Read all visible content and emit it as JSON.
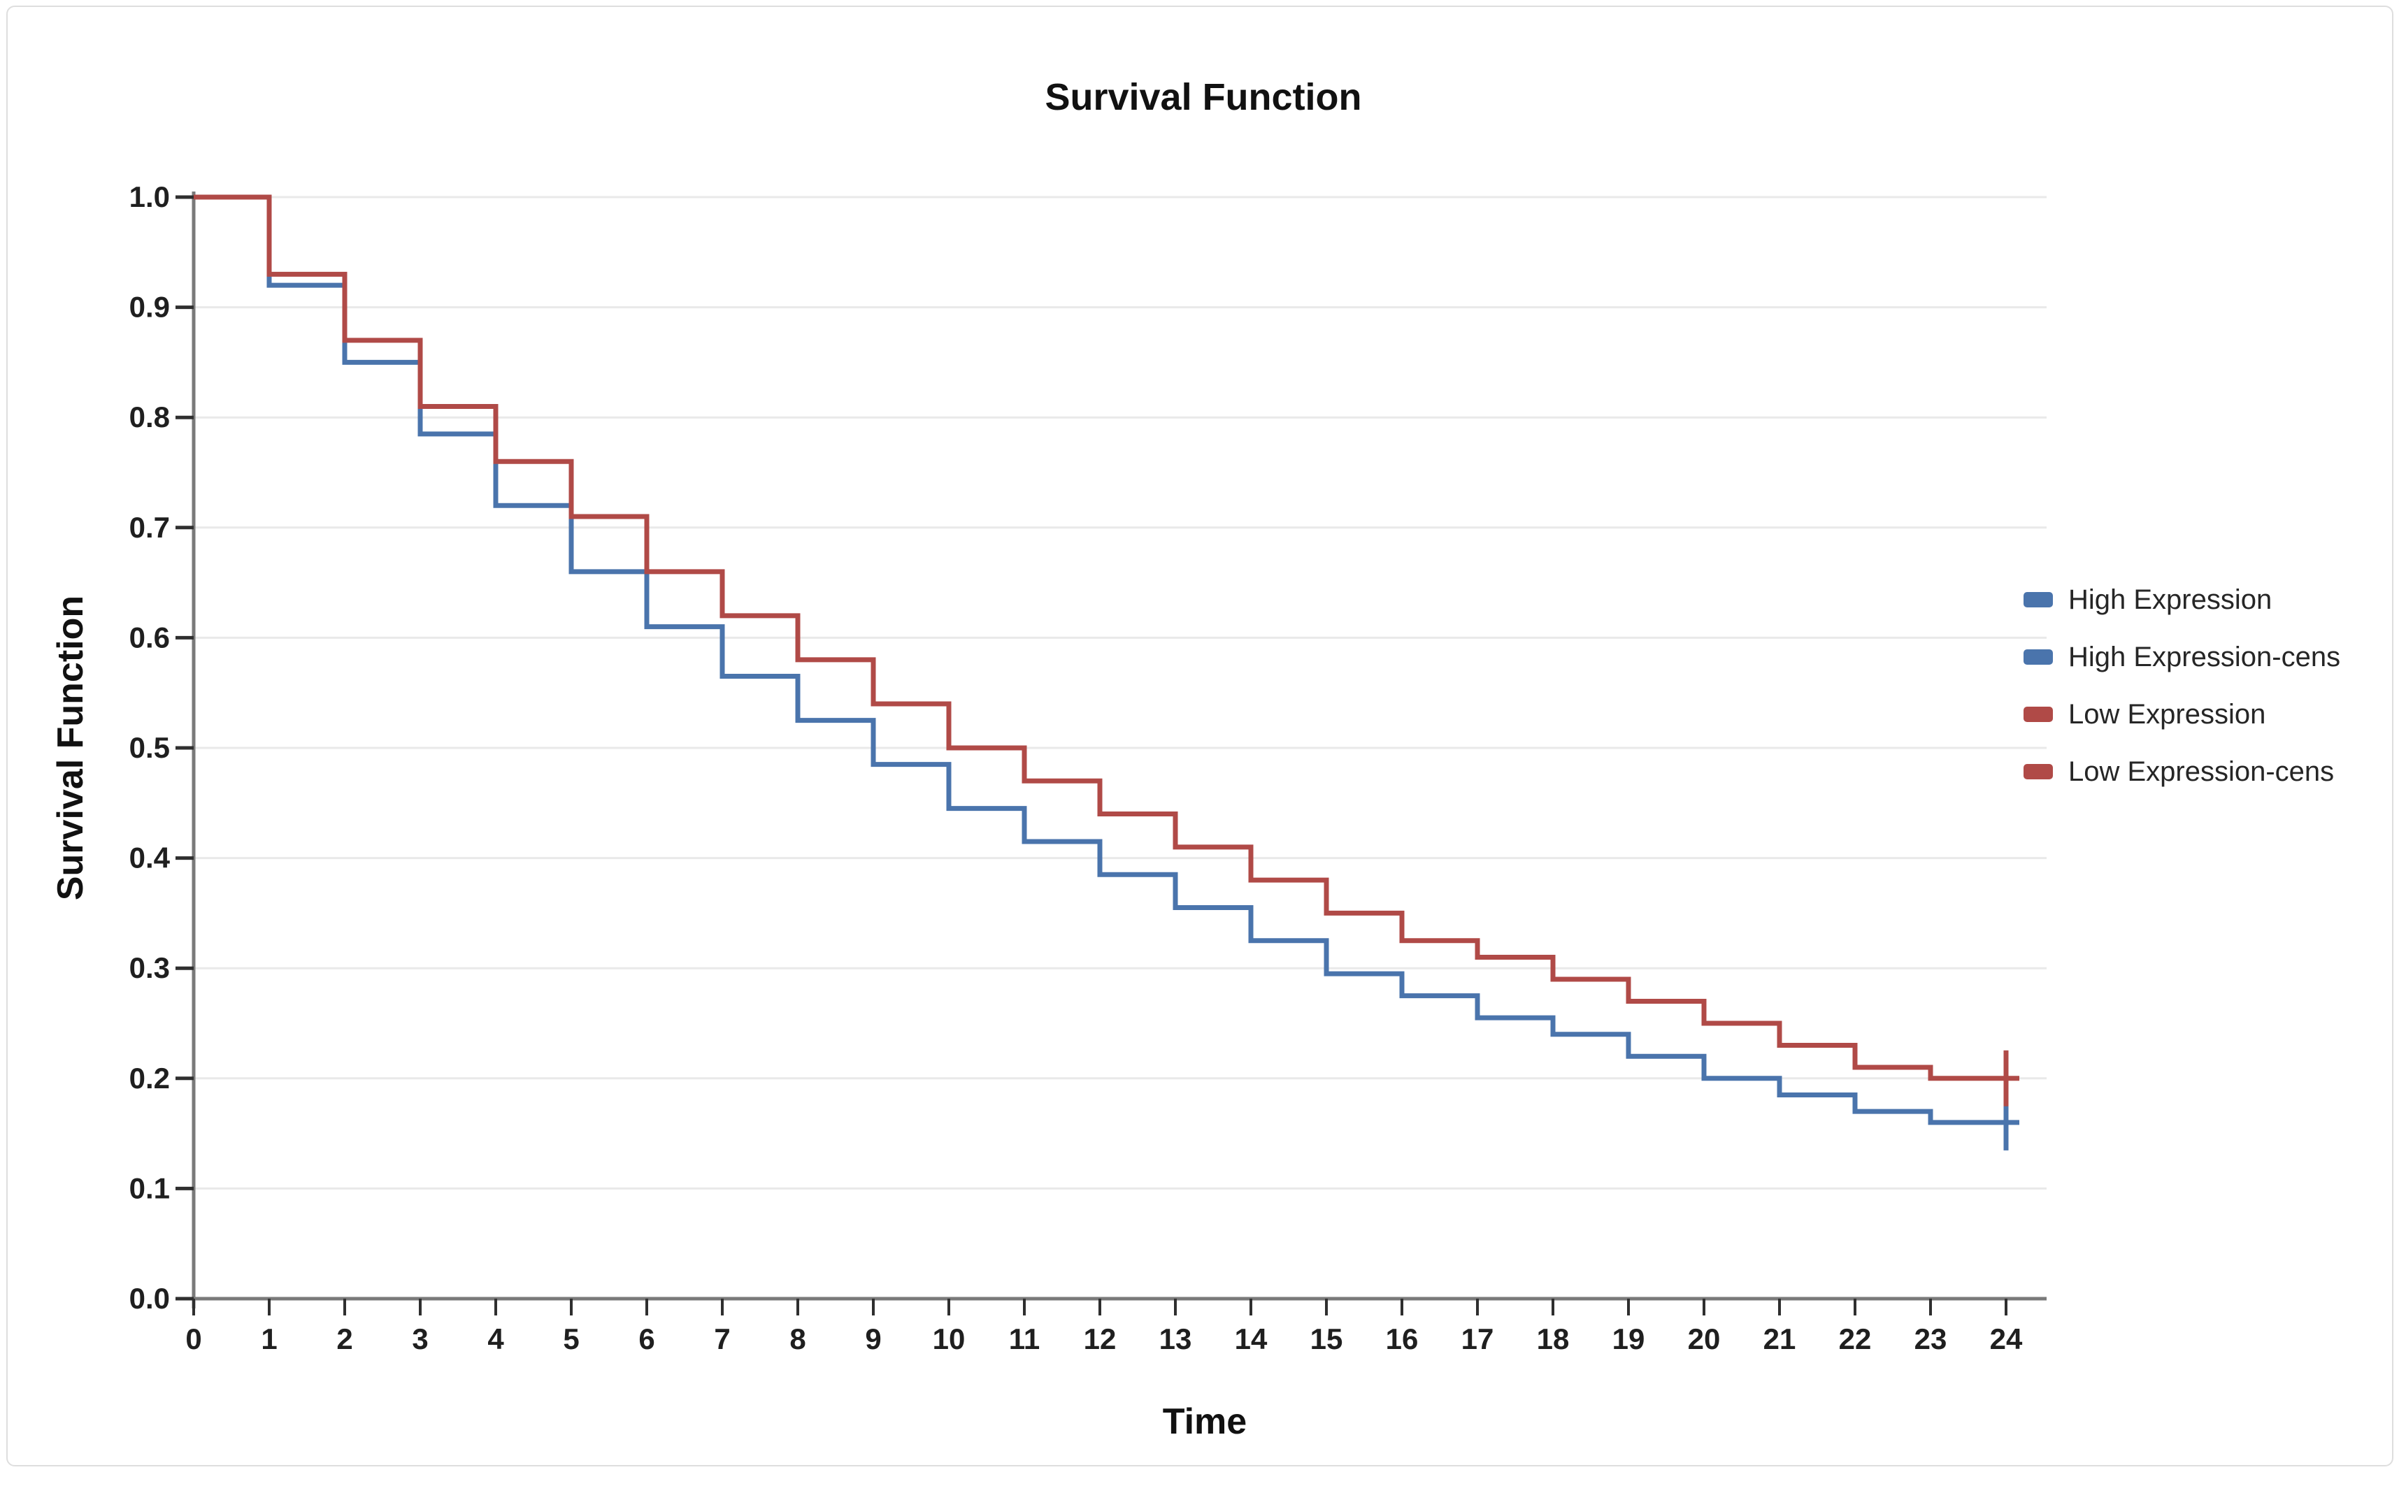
{
  "chart_data": {
    "type": "line",
    "subtype": "kaplan-meier-survival-step",
    "title": "Survival Function",
    "xlabel": "Time",
    "ylabel": "Survival Function",
    "xlim": [
      0,
      24
    ],
    "ylim": [
      0.0,
      1.0
    ],
    "x_ticks": [
      0,
      1,
      2,
      3,
      4,
      5,
      6,
      7,
      8,
      9,
      10,
      11,
      12,
      13,
      14,
      15,
      16,
      17,
      18,
      19,
      20,
      21,
      22,
      23,
      24
    ],
    "y_ticks": [
      0.0,
      0.1,
      0.2,
      0.3,
      0.4,
      0.5,
      0.6,
      0.7,
      0.8,
      0.9,
      1.0
    ],
    "grid": "horizontal",
    "legend_position": "right",
    "colors": {
      "high_expression": "#4a74ac",
      "low_expression": "#b04a47",
      "gridline": "#e9e9e9",
      "axis": "#7a7a7a",
      "tick": "#2f2f2f",
      "text": "#1f1f1f"
    },
    "series": [
      {
        "name": "High Expression",
        "color": "#4a74ac",
        "times": [
          0,
          1,
          2,
          3,
          4,
          5,
          6,
          7,
          8,
          9,
          10,
          11,
          12,
          13,
          14,
          15,
          16,
          17,
          18,
          19,
          20,
          21,
          22,
          23
        ],
        "values": [
          1.0,
          0.92,
          0.85,
          0.785,
          0.72,
          0.66,
          0.61,
          0.565,
          0.525,
          0.485,
          0.445,
          0.415,
          0.385,
          0.355,
          0.325,
          0.295,
          0.275,
          0.255,
          0.24,
          0.22,
          0.2,
          0.185,
          0.17,
          0.16
        ],
        "censored": [
          {
            "time": 24,
            "value": 0.16
          }
        ]
      },
      {
        "name": "Low Expression",
        "color": "#b04a47",
        "times": [
          0,
          1,
          2,
          3,
          4,
          5,
          6,
          7,
          8,
          9,
          10,
          11,
          12,
          13,
          14,
          15,
          16,
          17,
          18,
          19,
          20,
          21,
          22,
          23
        ],
        "values": [
          1.0,
          0.93,
          0.87,
          0.81,
          0.76,
          0.71,
          0.66,
          0.62,
          0.58,
          0.54,
          0.5,
          0.47,
          0.44,
          0.41,
          0.38,
          0.35,
          0.325,
          0.31,
          0.29,
          0.27,
          0.25,
          0.23,
          0.21,
          0.2
        ],
        "censored": [
          {
            "time": 24,
            "value": 0.2
          }
        ]
      }
    ],
    "legend": [
      {
        "label": "High Expression",
        "color": "#4a74ac"
      },
      {
        "label": "High Expression-cens",
        "color": "#4a74ac"
      },
      {
        "label": "Low Expression",
        "color": "#b04a47"
      },
      {
        "label": "Low Expression-cens",
        "color": "#b04a47"
      }
    ]
  }
}
